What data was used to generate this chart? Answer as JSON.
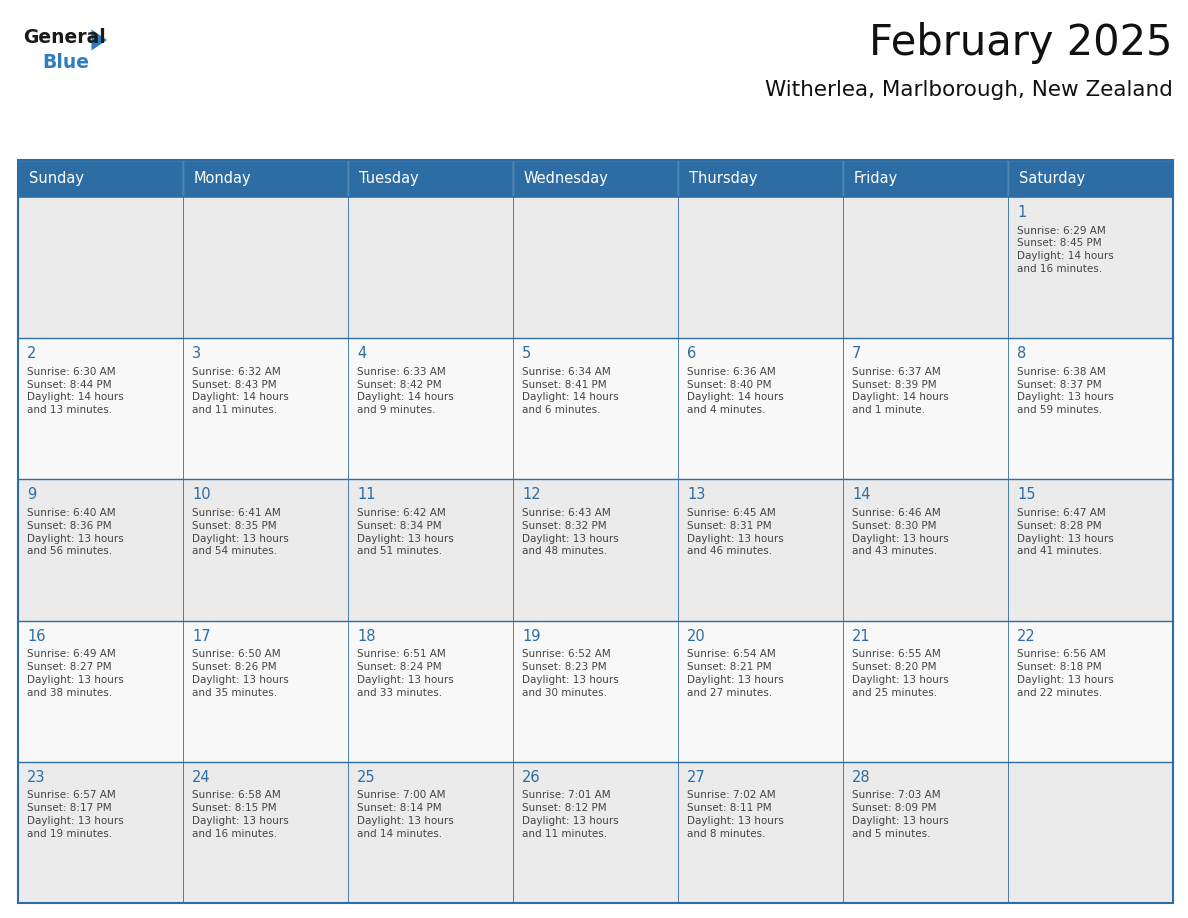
{
  "title": "February 2025",
  "subtitle": "Witherlea, Marlborough, New Zealand",
  "header_bg": "#2E6DA4",
  "header_text": "#FFFFFF",
  "cell_bg_light": "#EBEBEB",
  "cell_bg_white": "#FFFFFF",
  "cell_border": "#2E6DA4",
  "day_number_color": "#2E6DA4",
  "text_color": "#444444",
  "days_of_week": [
    "Sunday",
    "Monday",
    "Tuesday",
    "Wednesday",
    "Thursday",
    "Friday",
    "Saturday"
  ],
  "calendar_data": [
    [
      null,
      null,
      null,
      null,
      null,
      null,
      {
        "day": "1",
        "sunrise": "6:29 AM",
        "sunset": "8:45 PM",
        "daylight": "14 hours\nand 16 minutes."
      }
    ],
    [
      {
        "day": "2",
        "sunrise": "6:30 AM",
        "sunset": "8:44 PM",
        "daylight": "14 hours\nand 13 minutes."
      },
      {
        "day": "3",
        "sunrise": "6:32 AM",
        "sunset": "8:43 PM",
        "daylight": "14 hours\nand 11 minutes."
      },
      {
        "day": "4",
        "sunrise": "6:33 AM",
        "sunset": "8:42 PM",
        "daylight": "14 hours\nand 9 minutes."
      },
      {
        "day": "5",
        "sunrise": "6:34 AM",
        "sunset": "8:41 PM",
        "daylight": "14 hours\nand 6 minutes."
      },
      {
        "day": "6",
        "sunrise": "6:36 AM",
        "sunset": "8:40 PM",
        "daylight": "14 hours\nand 4 minutes."
      },
      {
        "day": "7",
        "sunrise": "6:37 AM",
        "sunset": "8:39 PM",
        "daylight": "14 hours\nand 1 minute."
      },
      {
        "day": "8",
        "sunrise": "6:38 AM",
        "sunset": "8:37 PM",
        "daylight": "13 hours\nand 59 minutes."
      }
    ],
    [
      {
        "day": "9",
        "sunrise": "6:40 AM",
        "sunset": "8:36 PM",
        "daylight": "13 hours\nand 56 minutes."
      },
      {
        "day": "10",
        "sunrise": "6:41 AM",
        "sunset": "8:35 PM",
        "daylight": "13 hours\nand 54 minutes."
      },
      {
        "day": "11",
        "sunrise": "6:42 AM",
        "sunset": "8:34 PM",
        "daylight": "13 hours\nand 51 minutes."
      },
      {
        "day": "12",
        "sunrise": "6:43 AM",
        "sunset": "8:32 PM",
        "daylight": "13 hours\nand 48 minutes."
      },
      {
        "day": "13",
        "sunrise": "6:45 AM",
        "sunset": "8:31 PM",
        "daylight": "13 hours\nand 46 minutes."
      },
      {
        "day": "14",
        "sunrise": "6:46 AM",
        "sunset": "8:30 PM",
        "daylight": "13 hours\nand 43 minutes."
      },
      {
        "day": "15",
        "sunrise": "6:47 AM",
        "sunset": "8:28 PM",
        "daylight": "13 hours\nand 41 minutes."
      }
    ],
    [
      {
        "day": "16",
        "sunrise": "6:49 AM",
        "sunset": "8:27 PM",
        "daylight": "13 hours\nand 38 minutes."
      },
      {
        "day": "17",
        "sunrise": "6:50 AM",
        "sunset": "8:26 PM",
        "daylight": "13 hours\nand 35 minutes."
      },
      {
        "day": "18",
        "sunrise": "6:51 AM",
        "sunset": "8:24 PM",
        "daylight": "13 hours\nand 33 minutes."
      },
      {
        "day": "19",
        "sunrise": "6:52 AM",
        "sunset": "8:23 PM",
        "daylight": "13 hours\nand 30 minutes."
      },
      {
        "day": "20",
        "sunrise": "6:54 AM",
        "sunset": "8:21 PM",
        "daylight": "13 hours\nand 27 minutes."
      },
      {
        "day": "21",
        "sunrise": "6:55 AM",
        "sunset": "8:20 PM",
        "daylight": "13 hours\nand 25 minutes."
      },
      {
        "day": "22",
        "sunrise": "6:56 AM",
        "sunset": "8:18 PM",
        "daylight": "13 hours\nand 22 minutes."
      }
    ],
    [
      {
        "day": "23",
        "sunrise": "6:57 AM",
        "sunset": "8:17 PM",
        "daylight": "13 hours\nand 19 minutes."
      },
      {
        "day": "24",
        "sunrise": "6:58 AM",
        "sunset": "8:15 PM",
        "daylight": "13 hours\nand 16 minutes."
      },
      {
        "day": "25",
        "sunrise": "7:00 AM",
        "sunset": "8:14 PM",
        "daylight": "13 hours\nand 14 minutes."
      },
      {
        "day": "26",
        "sunrise": "7:01 AM",
        "sunset": "8:12 PM",
        "daylight": "13 hours\nand 11 minutes."
      },
      {
        "day": "27",
        "sunrise": "7:02 AM",
        "sunset": "8:11 PM",
        "daylight": "13 hours\nand 8 minutes."
      },
      {
        "day": "28",
        "sunrise": "7:03 AM",
        "sunset": "8:09 PM",
        "daylight": "13 hours\nand 5 minutes."
      },
      null
    ]
  ],
  "logo_general_color": "#1a1a1a",
  "logo_blue_color": "#2B7EC1",
  "logo_triangle_color": "#2B7EC1",
  "fig_width": 11.88,
  "fig_height": 9.18,
  "dpi": 100
}
